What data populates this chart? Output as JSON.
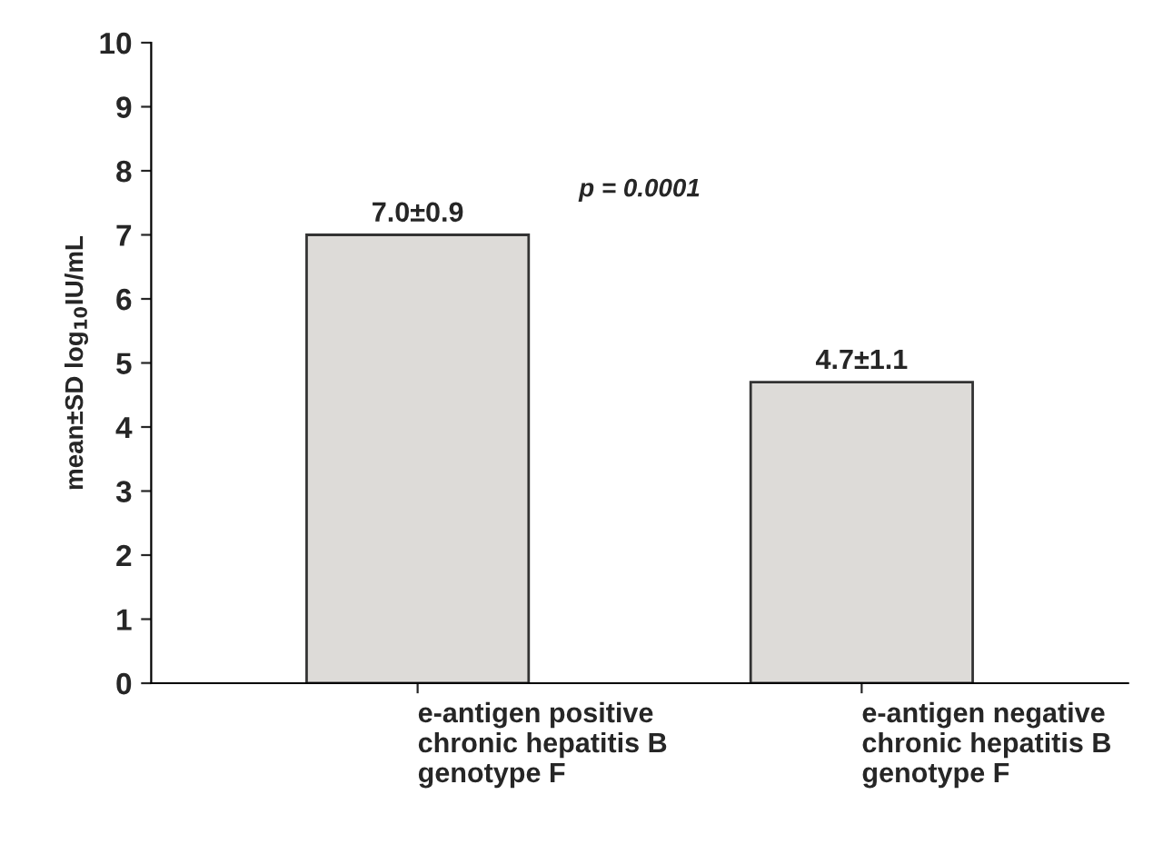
{
  "chart_data": {
    "type": "bar",
    "ylabel": "mean±SD log$_{10}$IU/mL",
    "categories": [
      "e-antigen positive\nchronic hepatitis B\ngenotype F",
      "e-antigen negative\nchronic hepatitis B\ngenotype F"
    ],
    "values": [
      7.0,
      4.7
    ],
    "value_labels": [
      "7.0±0.9",
      "4.7±1.1"
    ],
    "color": "#dddbd8",
    "ylim": [
      0,
      10
    ],
    "yticks": [
      0,
      1,
      2,
      3,
      4,
      5,
      6,
      7,
      8,
      9,
      10
    ],
    "grid": false,
    "annotations": [
      {
        "text": "p = 0.0001"
      }
    ]
  }
}
